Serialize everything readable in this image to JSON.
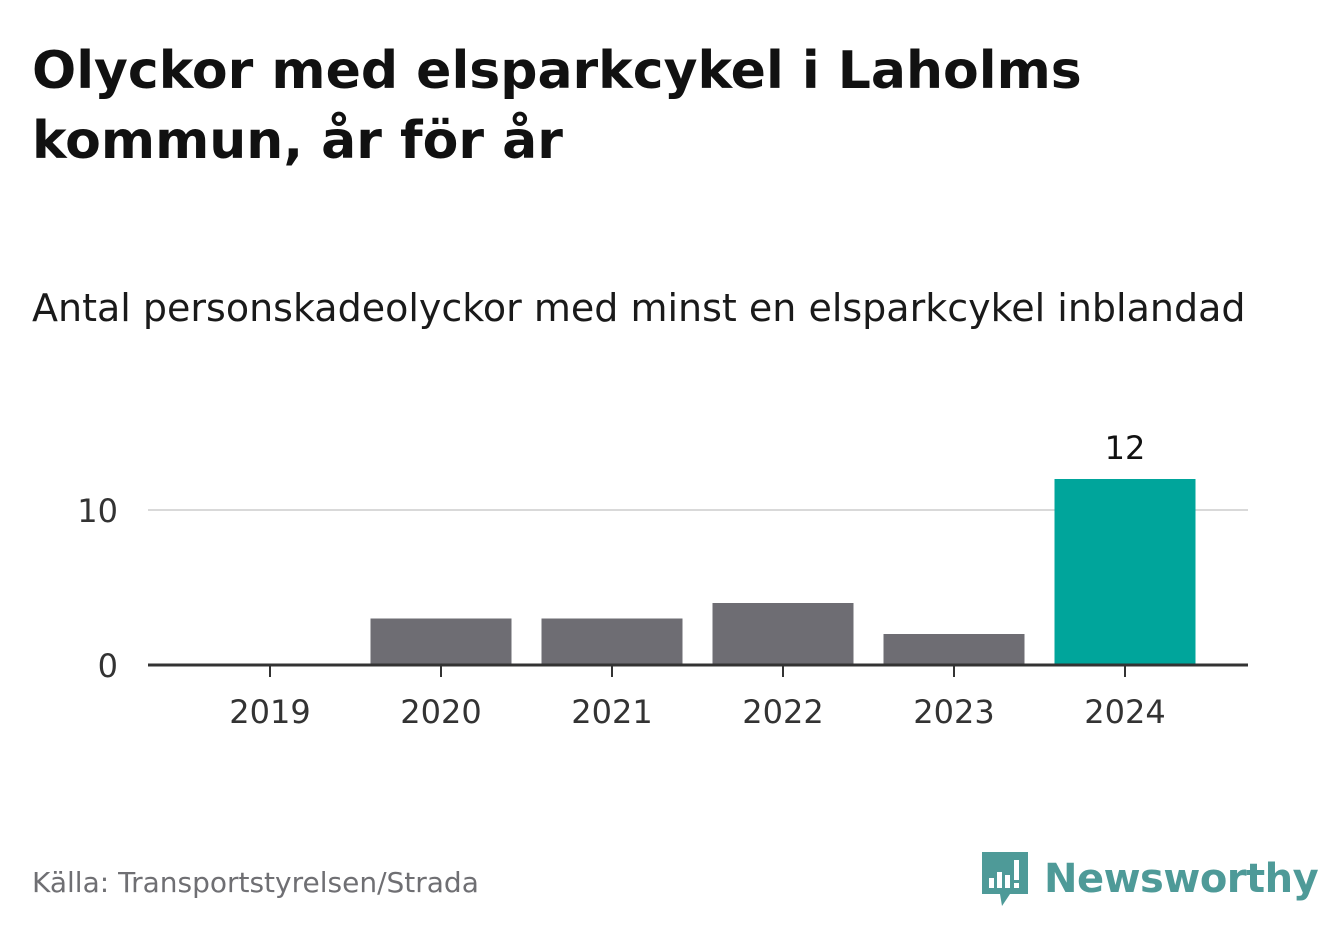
{
  "title": "Olyckor med elsparkcykel i Laholms kommun, år för år",
  "subtitle": "Antal personskadeolyckor med minst en elsparkcykel inblandad",
  "source": "Källa: Transportstyrelsen/Strada",
  "brand": {
    "name": "Newsworthy",
    "icon": "newsworthy-logo-icon",
    "color": "#4e9a98"
  },
  "colors": {
    "bar": "#6e6d73",
    "highlight": "#00a59b",
    "grid": "#d9d9d9",
    "axis": "#333333"
  },
  "chart_data": {
    "type": "bar",
    "categories": [
      "2019",
      "2020",
      "2021",
      "2022",
      "2023",
      "2024"
    ],
    "values": [
      0,
      3,
      3,
      4,
      2,
      12
    ],
    "highlight_index": 5,
    "value_labels": {
      "5": "12"
    },
    "yticks": [
      0,
      10
    ],
    "ylim": [
      0,
      12
    ],
    "grid": true,
    "xlabel": "",
    "ylabel": ""
  }
}
